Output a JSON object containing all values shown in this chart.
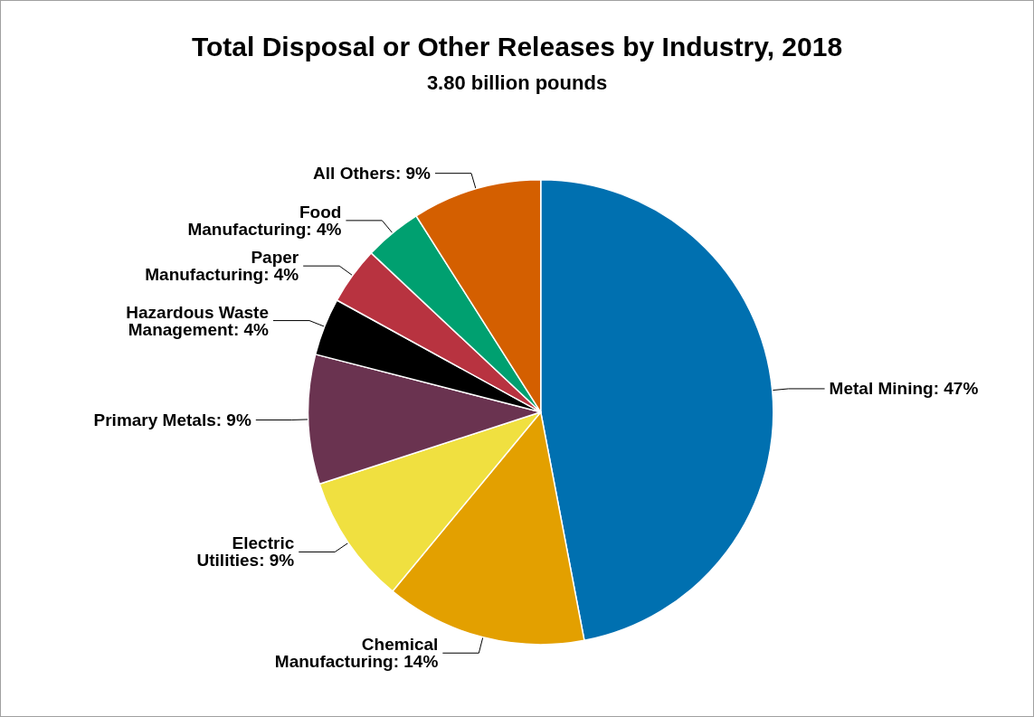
{
  "chart_data": {
    "type": "pie",
    "title": "Total Disposal or Other Releases by Industry, 2018",
    "subtitle": "3.80 billion pounds",
    "categories": [
      "Metal Mining",
      "Chemical Manufacturing",
      "Electric Utilities",
      "Primary Metals",
      "Hazardous Waste Management",
      "Paper Manufacturing",
      "Food Manufacturing",
      "All Others"
    ],
    "values": [
      47,
      14,
      9,
      9,
      4,
      4,
      4,
      9
    ],
    "value_labels": [
      "47%",
      "14%",
      "9%",
      "9%",
      "4%",
      "4%",
      "4%",
      "9%"
    ],
    "colors": [
      "#0070b0",
      "#e3a000",
      "#f0e040",
      "#6a3350",
      "#000000",
      "#b83340",
      "#00a070",
      "#d45f00"
    ],
    "legend": false
  }
}
